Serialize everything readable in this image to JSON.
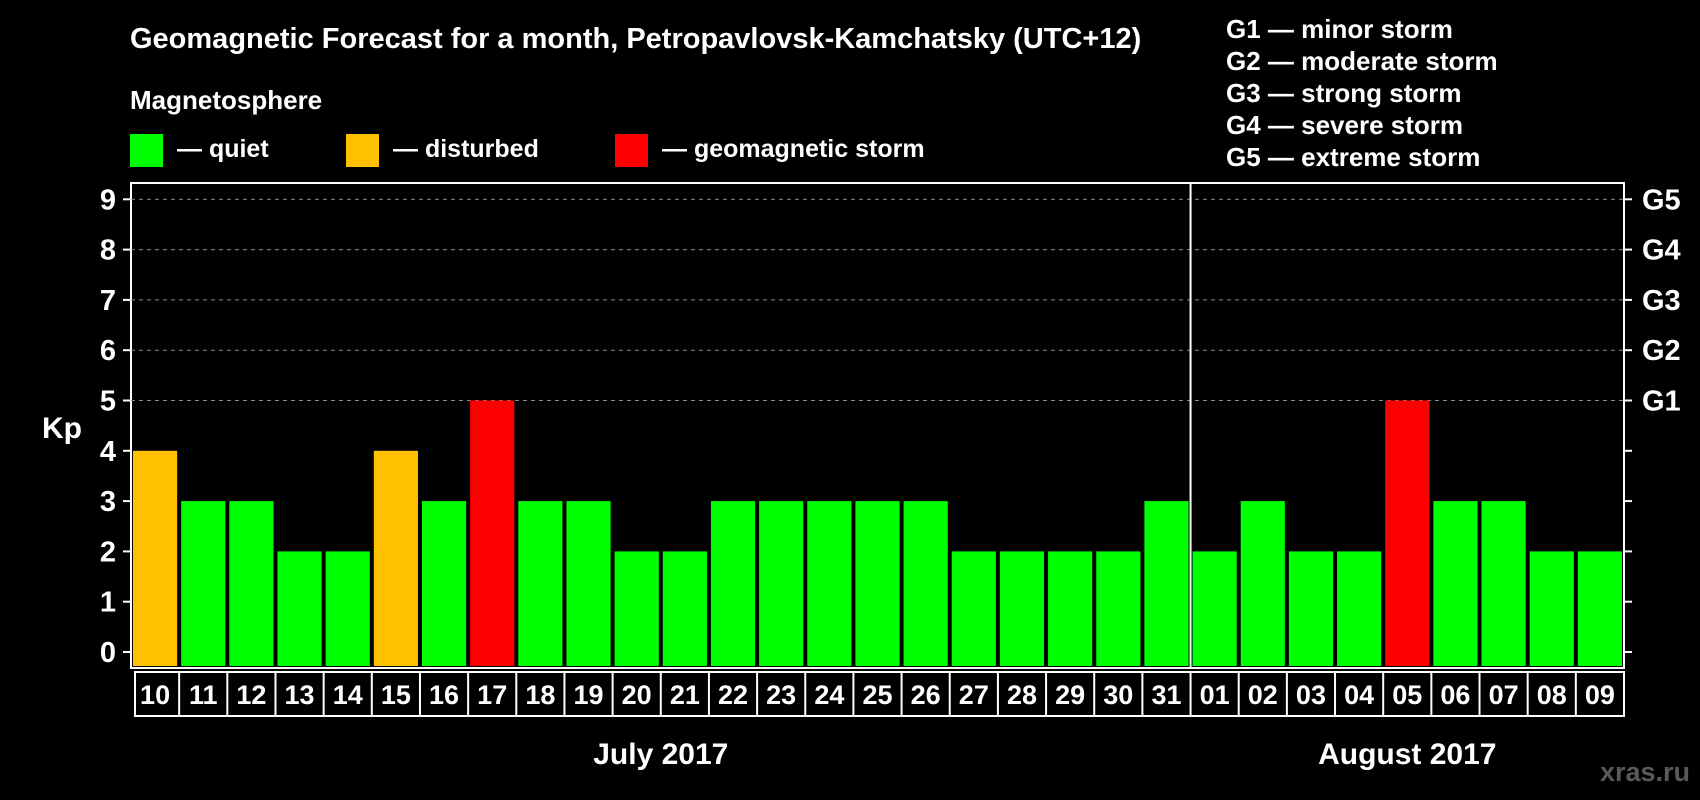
{
  "chart_data": {
    "type": "bar",
    "title": "Geomagnetic Forecast for a month, Petropavlovsk-Kamchatsky (UTC+12)",
    "subtitle": "Magnetosphere",
    "ylabel": "Kp",
    "ylim": [
      0,
      9
    ],
    "yticks": [
      "0",
      "1",
      "2",
      "3",
      "4",
      "5",
      "6",
      "7",
      "8",
      "9"
    ],
    "right_axis_labels": [
      {
        "kp": 5,
        "label": "G1"
      },
      {
        "kp": 6,
        "label": "G2"
      },
      {
        "kp": 7,
        "label": "G3"
      },
      {
        "kp": 8,
        "label": "G4"
      },
      {
        "kp": 9,
        "label": "G5"
      }
    ],
    "legend": [
      {
        "label": "— quiet",
        "color": "#00ff00"
      },
      {
        "label": "— disturbed",
        "color": "#ffc000"
      },
      {
        "label": "— geomagnetic storm",
        "color": "#ff0000"
      }
    ],
    "storm_scale": [
      "G1 — minor storm",
      "G2 — moderate storm",
      "G3 — strong storm",
      "G4 — severe storm",
      "G5 — extreme storm"
    ],
    "months": [
      {
        "label": "July 2017",
        "first": 0,
        "last": 21
      },
      {
        "label": "August 2017",
        "first": 22,
        "last": 30
      }
    ],
    "categories": [
      "10",
      "11",
      "12",
      "13",
      "14",
      "15",
      "16",
      "17",
      "18",
      "19",
      "20",
      "21",
      "22",
      "23",
      "24",
      "25",
      "26",
      "27",
      "28",
      "29",
      "30",
      "31",
      "01",
      "02",
      "03",
      "04",
      "05",
      "06",
      "07",
      "08",
      "09"
    ],
    "values": [
      4,
      3,
      3,
      2,
      2,
      4,
      3,
      5,
      3,
      3,
      2,
      2,
      3,
      3,
      3,
      3,
      3,
      2,
      2,
      2,
      2,
      3,
      2,
      3,
      2,
      2,
      5,
      3,
      3,
      2,
      2
    ],
    "level_colors": {
      "quiet": "#00ff00",
      "disturbed": "#ffc000",
      "storm": "#ff0000"
    },
    "watermark": "xras.ru"
  }
}
